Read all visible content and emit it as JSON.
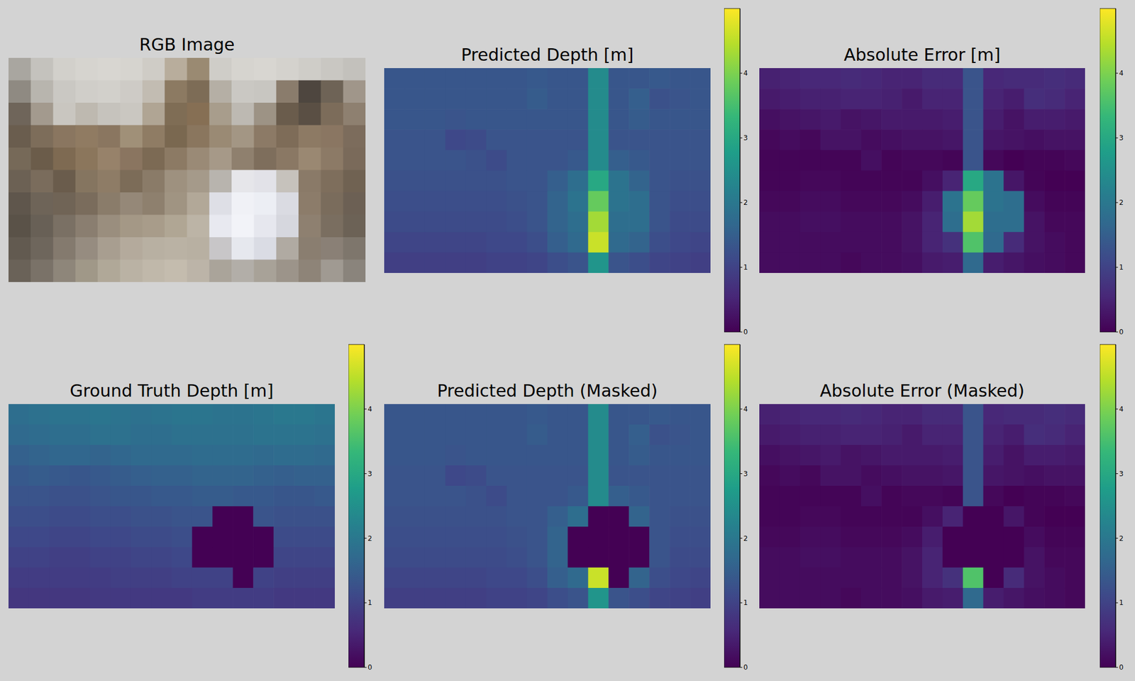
{
  "chart_data": [
    {
      "type": "image",
      "title": "RGB Image",
      "tick_labels": false,
      "colors": [
        [
          "#a9a6a0",
          "#c4c2bd",
          "#d2d0cb",
          "#d6d4cf",
          "#d8d6d1",
          "#d6d4cf",
          "#cfccc6",
          "#b8ad9c",
          "#9a8a72",
          "#cfcdc8",
          "#d6d4cf",
          "#d8d6d1",
          "#d4d2cd",
          "#cfcdc8",
          "#c9c7c2",
          "#c3c1bc"
        ],
        [
          "#8f8a82",
          "#b8b5ae",
          "#cac8c3",
          "#d0cec9",
          "#d2d0cb",
          "#cecbc6",
          "#c2bcb2",
          "#8c7a62",
          "#7d6c56",
          "#b5afa5",
          "#cac8c3",
          "#c8c6c1",
          "#8a7c6c",
          "#4e463f",
          "#6e6356",
          "#a0968a"
        ],
        [
          "#6f655a",
          "#a39a8e",
          "#c9c6c0",
          "#beb9b0",
          "#c6c3bd",
          "#cac7c1",
          "#b0a594",
          "#7f6d55",
          "#866f54",
          "#a89d8c",
          "#bdb9b2",
          "#9d9385",
          "#6a5c4c",
          "#5a4f44",
          "#7c6c5a",
          "#8e8070"
        ],
        [
          "#6a5d4e",
          "#7d6d5a",
          "#8a7660",
          "#907b62",
          "#8a7660",
          "#a09078",
          "#8f7c64",
          "#7a6850",
          "#8a765e",
          "#9a8a74",
          "#a39684",
          "#8c7a66",
          "#7e6c58",
          "#8d7a64",
          "#8a7662",
          "#7c6c5c"
        ],
        [
          "#766958",
          "#6b5c4a",
          "#7e6a52",
          "#8b765c",
          "#97826a",
          "#8a7560",
          "#7c6a54",
          "#8c7a64",
          "#9a8a76",
          "#a69988",
          "#8f806e",
          "#7e6e5c",
          "#8a7864",
          "#9a8872",
          "#8c7a66",
          "#7a6a5a"
        ],
        [
          "#6c6154",
          "#7a6c5c",
          "#6a5c4c",
          "#857560",
          "#8e7c66",
          "#7c6c58",
          "#8a7b68",
          "#9e917f",
          "#a59a8a",
          "#b8b4ae",
          "#e6e6ea",
          "#e2e2e8",
          "#c6c2bc",
          "#8a7a68",
          "#7e6e5c",
          "#706252"
        ],
        [
          "#5f564c",
          "#6e6458",
          "#706456",
          "#7a6c5c",
          "#8a7c6a",
          "#958878",
          "#8e806e",
          "#a09482",
          "#b2a898",
          "#dedfe6",
          "#f0f1f6",
          "#eceef4",
          "#dadbe2",
          "#8c7c6a",
          "#7a6c5c",
          "#6c6054"
        ],
        [
          "#5a5248",
          "#686056",
          "#7a7064",
          "#8a7e70",
          "#9a8e7e",
          "#a49886",
          "#a89c8a",
          "#b0a694",
          "#bcb4a6",
          "#e8e9f0",
          "#f2f3f8",
          "#e6e7ee",
          "#d6d7de",
          "#8e8070",
          "#7a6e60",
          "#6c6256"
        ],
        [
          "#625a50",
          "#6e665c",
          "#847a6e",
          "#968c80",
          "#a89e90",
          "#b4aa9c",
          "#b8b0a2",
          "#bab2a4",
          "#b8b0a2",
          "#c8c6c8",
          "#e6e8ee",
          "#dadce4",
          "#b0aaa2",
          "#8a7e70",
          "#8a8076",
          "#7e766c"
        ],
        [
          "#6a6258",
          "#7a7268",
          "#8e867a",
          "#a09888",
          "#b0a898",
          "#bab2a4",
          "#c0b8aa",
          "#c4bcae",
          "#bcb4a8",
          "#aaa49a",
          "#b2aea8",
          "#a8a298",
          "#9c948a",
          "#8e8478",
          "#a09a92",
          "#8a847c"
        ]
      ]
    },
    {
      "type": "heatmap",
      "title": "Predicted Depth [m]",
      "tick_labels": false,
      "color_range": [
        0,
        5
      ],
      "color_ticks": [
        0,
        1,
        2,
        3,
        4
      ],
      "cells": [
        [
          1.35,
          1.35,
          1.35,
          1.35,
          1.35,
          1.35,
          1.35,
          1.4,
          1.35,
          1.35,
          2.4,
          1.35,
          1.35,
          1.4,
          1.35,
          1.35
        ],
        [
          1.35,
          1.35,
          1.35,
          1.35,
          1.35,
          1.35,
          1.35,
          1.45,
          1.35,
          1.35,
          2.4,
          1.35,
          1.5,
          1.25,
          1.3,
          1.35
        ],
        [
          1.35,
          1.35,
          1.35,
          1.3,
          1.35,
          1.35,
          1.35,
          1.35,
          1.35,
          1.35,
          2.4,
          1.35,
          1.45,
          1.35,
          1.35,
          1.35
        ],
        [
          1.3,
          1.3,
          1.3,
          1.1,
          1.15,
          1.3,
          1.3,
          1.3,
          1.3,
          1.3,
          2.4,
          1.3,
          1.3,
          1.3,
          1.3,
          1.3
        ],
        [
          1.3,
          1.3,
          1.3,
          1.3,
          1.25,
          1.15,
          1.3,
          1.3,
          1.3,
          1.4,
          2.4,
          1.5,
          1.4,
          1.3,
          1.3,
          1.3
        ],
        [
          1.25,
          1.25,
          1.25,
          1.25,
          1.25,
          1.25,
          1.3,
          1.3,
          1.5,
          1.8,
          3.0,
          1.9,
          1.6,
          1.3,
          1.25,
          1.25
        ],
        [
          1.2,
          1.2,
          1.2,
          1.2,
          1.2,
          1.2,
          1.25,
          1.3,
          1.6,
          1.9,
          3.8,
          1.9,
          1.8,
          1.3,
          1.2,
          1.2
        ],
        [
          1.15,
          1.15,
          1.15,
          1.15,
          1.15,
          1.15,
          1.2,
          1.3,
          1.6,
          1.8,
          4.3,
          1.8,
          1.8,
          1.3,
          1.15,
          1.15
        ],
        [
          1.05,
          1.05,
          1.05,
          1.05,
          1.05,
          1.1,
          1.1,
          1.2,
          1.5,
          1.7,
          4.6,
          1.7,
          1.6,
          1.2,
          1.1,
          1.05
        ],
        [
          0.95,
          0.95,
          0.95,
          0.95,
          0.95,
          1.0,
          1.0,
          1.05,
          1.2,
          1.3,
          2.6,
          1.3,
          1.2,
          1.05,
          1.0,
          0.95
        ]
      ]
    },
    {
      "type": "heatmap",
      "title": "Absolute Error [m]",
      "tick_labels": false,
      "color_range": [
        0,
        5
      ],
      "color_ticks": [
        0,
        1,
        2,
        3,
        4
      ],
      "cells": [
        [
          0.45,
          0.5,
          0.55,
          0.55,
          0.6,
          0.55,
          0.5,
          0.5,
          0.6,
          0.6,
          1.3,
          0.55,
          0.6,
          0.6,
          0.65,
          0.6
        ],
        [
          0.35,
          0.4,
          0.45,
          0.45,
          0.5,
          0.5,
          0.45,
          0.35,
          0.5,
          0.5,
          1.3,
          0.5,
          0.4,
          0.65,
          0.6,
          0.5
        ],
        [
          0.2,
          0.25,
          0.3,
          0.35,
          0.25,
          0.3,
          0.35,
          0.35,
          0.35,
          0.4,
          1.3,
          0.4,
          0.25,
          0.4,
          0.4,
          0.35
        ],
        [
          0.1,
          0.15,
          0.1,
          0.25,
          0.25,
          0.15,
          0.2,
          0.25,
          0.25,
          0.3,
          1.3,
          0.3,
          0.25,
          0.2,
          0.25,
          0.25
        ],
        [
          0.05,
          0.05,
          0.05,
          0.05,
          0.05,
          0.2,
          0.05,
          0.1,
          0.1,
          0.05,
          1.3,
          0.1,
          0.0,
          0.05,
          0.05,
          0.1
        ],
        [
          0.05,
          0.05,
          0.1,
          0.1,
          0.05,
          0.05,
          0.05,
          0.05,
          0.2,
          0.5,
          3.0,
          1.9,
          0.3,
          0.05,
          0.0,
          0.0
        ],
        [
          0.1,
          0.1,
          0.15,
          0.15,
          0.1,
          0.1,
          0.1,
          0.15,
          0.4,
          1.9,
          3.8,
          1.9,
          1.8,
          0.15,
          0.05,
          0.05
        ],
        [
          0.15,
          0.15,
          0.2,
          0.2,
          0.15,
          0.15,
          0.15,
          0.25,
          0.5,
          1.8,
          4.3,
          1.8,
          1.8,
          0.25,
          0.1,
          0.1
        ],
        [
          0.15,
          0.15,
          0.15,
          0.15,
          0.15,
          0.15,
          0.15,
          0.25,
          0.5,
          0.7,
          3.6,
          1.7,
          0.6,
          0.25,
          0.15,
          0.1
        ],
        [
          0.15,
          0.15,
          0.15,
          0.15,
          0.1,
          0.15,
          0.15,
          0.2,
          0.35,
          0.4,
          1.7,
          0.4,
          0.3,
          0.2,
          0.15,
          0.1
        ]
      ]
    },
    {
      "type": "heatmap",
      "title": "Ground Truth Depth [m]",
      "tick_labels": false,
      "color_range": [
        0,
        5
      ],
      "color_ticks": [
        0,
        1,
        2,
        3,
        4
      ],
      "cells": [
        [
          1.8,
          1.85,
          1.9,
          1.9,
          1.95,
          1.9,
          1.85,
          1.9,
          1.95,
          1.95,
          1.9,
          1.9,
          1.95,
          2.0,
          2.0,
          1.95
        ],
        [
          1.7,
          1.75,
          1.8,
          1.8,
          1.85,
          1.85,
          1.8,
          1.8,
          1.85,
          1.85,
          1.85,
          1.85,
          1.9,
          1.9,
          1.9,
          1.85
        ],
        [
          1.55,
          1.6,
          1.65,
          1.65,
          1.6,
          1.65,
          1.7,
          1.7,
          1.7,
          1.75,
          1.75,
          1.75,
          1.7,
          1.75,
          1.75,
          1.7
        ],
        [
          1.4,
          1.45,
          1.4,
          1.35,
          1.4,
          1.45,
          1.5,
          1.55,
          1.55,
          1.6,
          1.6,
          1.6,
          1.55,
          1.5,
          1.55,
          1.55
        ],
        [
          1.3,
          1.3,
          1.25,
          1.25,
          1.3,
          1.35,
          1.35,
          1.4,
          1.4,
          1.45,
          1.45,
          1.4,
          1.4,
          1.35,
          1.35,
          1.4
        ],
        [
          1.2,
          1.2,
          1.15,
          1.15,
          1.2,
          1.2,
          1.25,
          1.25,
          1.3,
          1.3,
          0,
          0,
          1.3,
          1.25,
          1.25,
          1.25
        ],
        [
          1.1,
          1.1,
          1.05,
          1.05,
          1.1,
          1.1,
          1.15,
          1.15,
          1.2,
          0,
          0,
          0,
          0,
          1.15,
          1.15,
          1.15
        ],
        [
          1.0,
          1.0,
          0.95,
          0.95,
          1.0,
          1.0,
          1.05,
          1.05,
          1.1,
          0,
          0,
          0,
          0,
          1.05,
          1.05,
          1.05
        ],
        [
          0.9,
          0.9,
          0.9,
          0.9,
          0.9,
          0.95,
          0.95,
          0.95,
          1.0,
          1.0,
          1.0,
          0,
          1.0,
          0.95,
          0.95,
          0.95
        ],
        [
          0.8,
          0.8,
          0.8,
          0.8,
          0.85,
          0.85,
          0.85,
          0.85,
          0.85,
          0.9,
          0.9,
          0.9,
          0.9,
          0.85,
          0.85,
          0.85
        ]
      ]
    },
    {
      "type": "heatmap",
      "title": "Predicted Depth (Masked)",
      "tick_labels": false,
      "color_range": [
        0,
        5
      ],
      "color_ticks": [
        0,
        1,
        2,
        3,
        4
      ],
      "cells": [
        [
          1.35,
          1.35,
          1.35,
          1.35,
          1.35,
          1.35,
          1.35,
          1.4,
          1.35,
          1.35,
          2.4,
          1.35,
          1.35,
          1.4,
          1.35,
          1.35
        ],
        [
          1.35,
          1.35,
          1.35,
          1.35,
          1.35,
          1.35,
          1.35,
          1.45,
          1.35,
          1.35,
          2.4,
          1.35,
          1.5,
          1.25,
          1.3,
          1.35
        ],
        [
          1.35,
          1.35,
          1.35,
          1.3,
          1.35,
          1.35,
          1.35,
          1.35,
          1.35,
          1.35,
          2.4,
          1.35,
          1.45,
          1.35,
          1.35,
          1.35
        ],
        [
          1.3,
          1.3,
          1.3,
          1.1,
          1.15,
          1.3,
          1.3,
          1.3,
          1.3,
          1.3,
          2.4,
          1.3,
          1.3,
          1.3,
          1.3,
          1.3
        ],
        [
          1.3,
          1.3,
          1.3,
          1.3,
          1.25,
          1.15,
          1.3,
          1.3,
          1.3,
          1.4,
          2.4,
          1.5,
          1.4,
          1.3,
          1.3,
          1.3
        ],
        [
          1.25,
          1.25,
          1.25,
          1.25,
          1.25,
          1.25,
          1.3,
          1.3,
          1.5,
          1.8,
          0,
          0,
          1.6,
          1.3,
          1.25,
          1.25
        ],
        [
          1.2,
          1.2,
          1.2,
          1.2,
          1.2,
          1.2,
          1.25,
          1.3,
          1.6,
          0,
          0,
          0,
          0,
          1.3,
          1.2,
          1.2
        ],
        [
          1.15,
          1.15,
          1.15,
          1.15,
          1.15,
          1.15,
          1.2,
          1.3,
          1.6,
          0,
          0,
          0,
          0,
          1.3,
          1.15,
          1.15
        ],
        [
          1.05,
          1.05,
          1.05,
          1.05,
          1.05,
          1.1,
          1.1,
          1.2,
          1.5,
          1.7,
          4.6,
          0,
          1.6,
          1.2,
          1.1,
          1.05
        ],
        [
          0.95,
          0.95,
          0.95,
          0.95,
          0.95,
          1.0,
          1.0,
          1.05,
          1.2,
          1.3,
          2.6,
          1.3,
          1.2,
          1.05,
          1.0,
          0.95
        ]
      ]
    },
    {
      "type": "heatmap",
      "title": "Absolute Error (Masked)",
      "tick_labels": false,
      "color_range": [
        0,
        5
      ],
      "color_ticks": [
        0,
        1,
        2,
        3,
        4
      ],
      "cells": [
        [
          0.45,
          0.5,
          0.55,
          0.55,
          0.6,
          0.55,
          0.5,
          0.5,
          0.6,
          0.6,
          1.3,
          0.55,
          0.6,
          0.6,
          0.65,
          0.6
        ],
        [
          0.35,
          0.4,
          0.45,
          0.45,
          0.5,
          0.5,
          0.45,
          0.35,
          0.5,
          0.5,
          1.3,
          0.5,
          0.4,
          0.65,
          0.6,
          0.5
        ],
        [
          0.2,
          0.25,
          0.3,
          0.35,
          0.25,
          0.3,
          0.35,
          0.35,
          0.35,
          0.4,
          1.3,
          0.4,
          0.25,
          0.4,
          0.4,
          0.35
        ],
        [
          0.1,
          0.15,
          0.1,
          0.25,
          0.25,
          0.15,
          0.2,
          0.25,
          0.25,
          0.3,
          1.3,
          0.3,
          0.25,
          0.2,
          0.25,
          0.25
        ],
        [
          0.05,
          0.05,
          0.05,
          0.05,
          0.05,
          0.2,
          0.05,
          0.1,
          0.1,
          0.05,
          1.3,
          0.1,
          0.0,
          0.05,
          0.05,
          0.1
        ],
        [
          0.05,
          0.05,
          0.1,
          0.1,
          0.05,
          0.05,
          0.05,
          0.05,
          0.2,
          0.5,
          0,
          0,
          0.3,
          0.05,
          0.0,
          0.0
        ],
        [
          0.1,
          0.1,
          0.15,
          0.15,
          0.1,
          0.1,
          0.1,
          0.15,
          0.4,
          0,
          0,
          0,
          0,
          0.15,
          0.05,
          0.05
        ],
        [
          0.15,
          0.15,
          0.2,
          0.2,
          0.15,
          0.15,
          0.15,
          0.25,
          0.5,
          0,
          0,
          0,
          0,
          0.25,
          0.1,
          0.1
        ],
        [
          0.15,
          0.15,
          0.15,
          0.15,
          0.15,
          0.15,
          0.15,
          0.25,
          0.5,
          0.7,
          3.6,
          0,
          0.6,
          0.25,
          0.15,
          0.1
        ],
        [
          0.15,
          0.15,
          0.15,
          0.15,
          0.1,
          0.15,
          0.15,
          0.2,
          0.35,
          0.4,
          1.7,
          0.4,
          0.3,
          0.2,
          0.15,
          0.1
        ]
      ]
    }
  ]
}
